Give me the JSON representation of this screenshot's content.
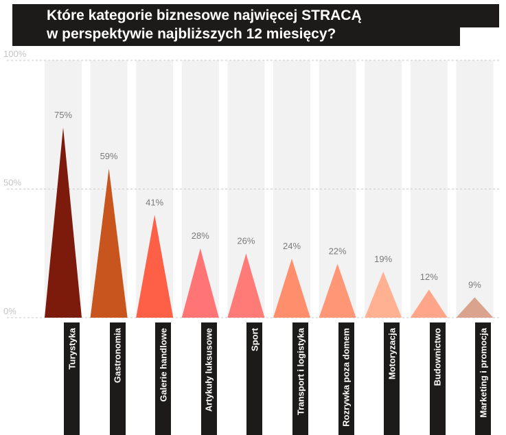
{
  "title": {
    "line1": "Które kategorie biznesowe najwięcej STRACĄ",
    "line2": "w perspektywie najbliższych 12 miesięcy?"
  },
  "chart_data": {
    "type": "bar",
    "title": "Które kategorie biznesowe najwięcej STRACĄ w perspektywie najbliższych 12 miesięcy?",
    "xlabel": "",
    "ylabel": "",
    "ylim": [
      0,
      100
    ],
    "yticks": [
      "100%",
      "50%",
      "0%"
    ],
    "categories": [
      "Turystyka",
      "Gastronomia",
      "Galerie handlowe",
      "Artykuły luksusowe",
      "Sport",
      "Transport i logistyka",
      "Rozrywka poza domem",
      "Motoryzacja",
      "Budownictwo",
      "Marketing i promocja"
    ],
    "values": [
      75,
      59,
      41,
      28,
      26,
      24,
      22,
      19,
      12,
      9
    ],
    "value_labels": [
      "75%",
      "59%",
      "41%",
      "28%",
      "26%",
      "24%",
      "22%",
      "19%",
      "12%",
      "9%"
    ],
    "colors": [
      "#7c1a0c",
      "#c8551d",
      "#fe5f47",
      "#ff7575",
      "#ff7b78",
      "#ff8e6d",
      "#ff9676",
      "#ffb192",
      "#ffa58a",
      "#d9a38e"
    ]
  }
}
